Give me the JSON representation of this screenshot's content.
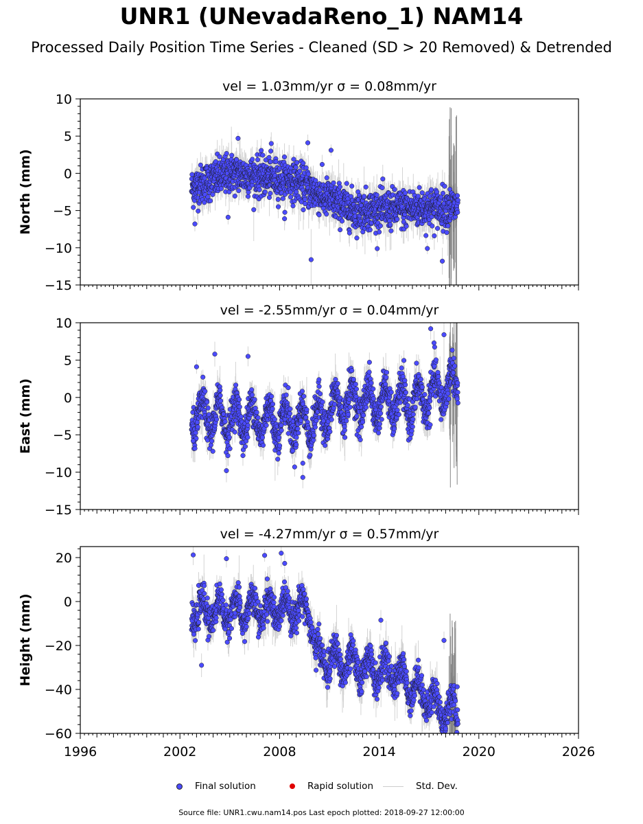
{
  "title": "UNR1 (UNevadaReno_1) NAM14",
  "subtitle": "Processed Daily Position Time Series - Cleaned (SD > 20 Removed) & Detrended",
  "colors": {
    "final": "#4b4bff",
    "final_edge": "#1a1a1a",
    "rapid": "#e00000",
    "stddev": "#b0b0b0",
    "stddev_dense": "#555555"
  },
  "chart_data": [
    {
      "type": "scatter",
      "title": "vel = 1.03mm/yr   σ = 0.08mm/yr",
      "ylabel": "North (mm)",
      "xlim": [
        1996,
        2026
      ],
      "ylim": [
        -15,
        10
      ],
      "yticks": [
        10,
        5,
        0,
        -5,
        -10,
        -15
      ],
      "data_span": [
        2002.7,
        2018.74
      ],
      "trend_knots": [
        [
          2002.7,
          -2
        ],
        [
          2005,
          0
        ],
        [
          2009,
          -1
        ],
        [
          2010.5,
          -3
        ],
        [
          2012.5,
          -5
        ],
        [
          2018.7,
          -4.5
        ]
      ],
      "scatter_sd": 1.3,
      "outliers": [
        [
          2009.9,
          -11.6
        ],
        [
          2017.8,
          -11.8
        ],
        [
          2005.5,
          4.7
        ],
        [
          2009.7,
          4.1
        ],
        [
          2007.5,
          4
        ],
        [
          2011.1,
          3.1
        ],
        [
          2016.9,
          -10.1
        ],
        [
          2002.9,
          -6.8
        ],
        [
          2004.9,
          -5.9
        ],
        [
          2008.3,
          -6.1
        ]
      ]
    },
    {
      "type": "scatter",
      "title": "vel = -2.55mm/yr   σ = 0.04mm/yr",
      "ylabel": "East (mm)",
      "xlim": [
        1996,
        2026
      ],
      "ylim": [
        -15,
        10
      ],
      "yticks": [
        10,
        5,
        0,
        -5,
        -10,
        -15
      ],
      "data_span": [
        2002.7,
        2018.74
      ],
      "trend_knots": [
        [
          2002.7,
          -2.5
        ],
        [
          2010,
          -3.3
        ],
        [
          2012,
          -0.5
        ],
        [
          2016,
          -0.8
        ],
        [
          2018.7,
          2
        ]
      ],
      "seasonal_amp": 2.2,
      "scatter_sd": 1.2,
      "outliers": [
        [
          2017.1,
          9.2
        ],
        [
          2017.9,
          8.4
        ],
        [
          2017.3,
          7.3
        ],
        [
          2004.1,
          5.8
        ],
        [
          2006.1,
          5.5
        ],
        [
          2004.8,
          -9.8
        ],
        [
          2009.4,
          -10.7
        ],
        [
          2009.4,
          -8.8
        ],
        [
          2003,
          4.1
        ],
        [
          2002.8,
          -5.8
        ]
      ]
    },
    {
      "type": "scatter",
      "title": "vel = -4.27mm/yr   σ = 0.57mm/yr",
      "ylabel": "Height (mm)",
      "xlim": [
        1996,
        2026
      ],
      "ylim": [
        -60,
        25
      ],
      "yticks": [
        20,
        0,
        -20,
        -40,
        -60
      ],
      "data_span": [
        2002.7,
        2018.74
      ],
      "trend_knots": [
        [
          2002.7,
          -5
        ],
        [
          2009.8,
          -3
        ],
        [
          2010.2,
          -25
        ],
        [
          2013,
          -30
        ],
        [
          2015,
          -33
        ],
        [
          2018,
          -50
        ]
      ],
      "seasonal_amp": 6,
      "scatter_sd": 3.5,
      "outliers": [
        [
          2002.8,
          21.2
        ],
        [
          2007.1,
          21
        ],
        [
          2008.1,
          22
        ],
        [
          2004.8,
          19.5
        ],
        [
          2018.7,
          -38.8
        ],
        [
          2017.9,
          -17.7
        ],
        [
          2003.3,
          -29
        ],
        [
          2014.1,
          -8.5
        ]
      ]
    }
  ],
  "x_axis": {
    "ticks": [
      "1996",
      "2002",
      "2008",
      "2014",
      "2020",
      "2026"
    ]
  },
  "legend": {
    "placement": "bottom-center",
    "items": [
      {
        "label": "Final solution",
        "color": "#4b4bff"
      },
      {
        "label": "Rapid solution",
        "color": "#e00000"
      },
      {
        "label": "Std. Dev.",
        "color": "#cccccc"
      }
    ]
  },
  "footer": "Source file: UNR1.cwu.nam14.pos  Last epoch plotted: 2018-09-27 12:00:00"
}
